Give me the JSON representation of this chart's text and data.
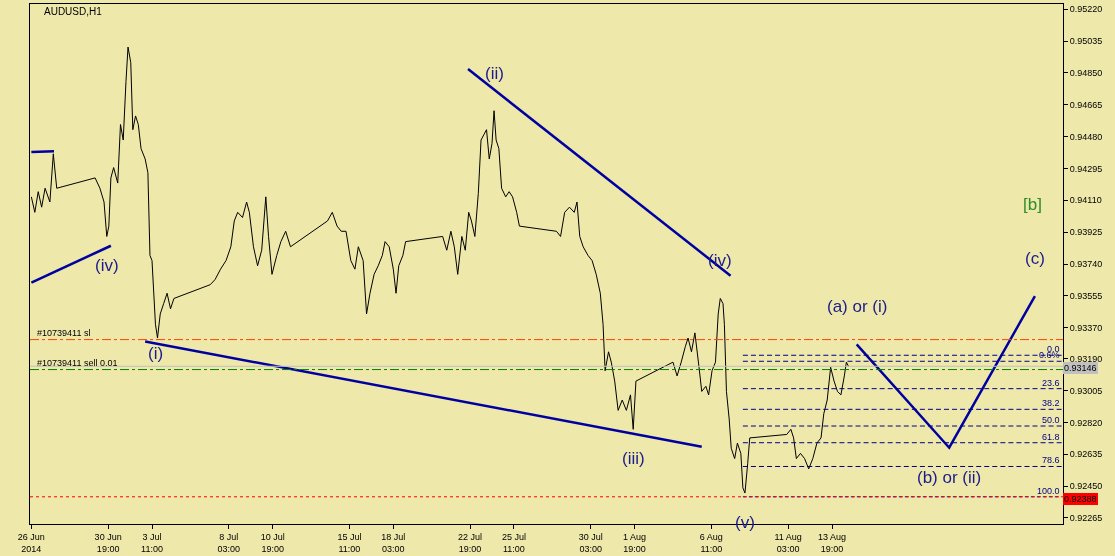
{
  "chart_data": {
    "type": "line",
    "title": "AUDUSD,H1",
    "xlim": [
      "2014-06-26T01:00",
      "2014-08-27T20:00"
    ],
    "ylim": [
      0.9223,
      0.9525
    ],
    "xticks": [
      {
        "value": "2014-06-26T03:00",
        "label": "26 Jun 2014"
      },
      {
        "value": "2014-06-30T19:00",
        "label": "30 Jun 19:00"
      },
      {
        "value": "2014-07-03T11:00",
        "label": "3 Jul 11:00"
      },
      {
        "value": "2014-07-08T03:00",
        "label": "8 Jul 03:00"
      },
      {
        "value": "2014-07-10T19:00",
        "label": "10 Jul 19:00"
      },
      {
        "value": "2014-07-15T11:00",
        "label": "15 Jul 11:00"
      },
      {
        "value": "2014-07-18T03:00",
        "label": "18 Jul 03:00"
      },
      {
        "value": "2014-07-22T19:00",
        "label": "22 Jul 19:00"
      },
      {
        "value": "2014-07-25T11:00",
        "label": "25 Jul 11:00"
      },
      {
        "value": "2014-07-30T03:00",
        "label": "30 Jul 03:00"
      },
      {
        "value": "2014-08-01T19:00",
        "label": "1 Aug 19:00"
      },
      {
        "value": "2014-08-06T11:00",
        "label": "6 Aug 11:00"
      },
      {
        "value": "2014-08-11T03:00",
        "label": "11 Aug 03:00"
      },
      {
        "value": "2014-08-13T19:00",
        "label": "13 Aug 19:00"
      }
    ],
    "yticks": [
      {
        "value": 0.9522,
        "label": "0.95220"
      },
      0.95035,
      {
        "value": 0.9485,
        "label": "0.94850"
      },
      0.94665,
      {
        "value": 0.9448,
        "label": "0.94480"
      },
      0.94295,
      {
        "value": 0.9411,
        "label": "0.94110"
      },
      0.93925,
      {
        "value": 0.9374,
        "label": "0.93740"
      },
      0.93555,
      {
        "value": 0.9337,
        "label": "0.93370"
      },
      {
        "value": 0.9319,
        "label": "0.93190"
      },
      0.93005,
      {
        "value": 0.9282,
        "label": "0.92820"
      },
      0.92635,
      {
        "value": 0.9245,
        "label": "0.92450"
      },
      0.92265
    ],
    "grid": false,
    "legend": false,
    "series": [
      {
        "color": "#000000",
        "line_style": "solid",
        "x": [
          "2014-06-26T03:00",
          "2014-06-26T08:00",
          "2014-06-26T13:00",
          "2014-06-26T18:00",
          "2014-06-26T23:00",
          "2014-06-27T06:00",
          "2014-06-27T11:00",
          "2014-06-27T16:00",
          "2014-06-30T00:00",
          "2014-06-30T07:00",
          "2014-06-30T13:00",
          "2014-06-30T17:00",
          "2014-06-30T20:00",
          "2014-06-30T23:00",
          "2014-07-01T03:00",
          "2014-07-01T09:00",
          "2014-07-01T13:00",
          "2014-07-01T17:00",
          "2014-07-01T21:00",
          "2014-07-02T00:00",
          "2014-07-02T04:00",
          "2014-07-02T07:00",
          "2014-07-02T11:00",
          "2014-07-02T15:00",
          "2014-07-02T19:00",
          "2014-07-03T01:00",
          "2014-07-03T05:00",
          "2014-07-03T08:00",
          "2014-07-03T11:00",
          "2014-07-03T16:00",
          "2014-07-03T19:00",
          "2014-07-03T23:00",
          "2014-07-04T04:00",
          "2014-07-04T09:00",
          "2014-07-04T14:00",
          "2014-07-04T19:00",
          "2014-07-07T00:00",
          "2014-07-07T07:00",
          "2014-07-07T15:00",
          "2014-07-07T23:00",
          "2014-07-08T06:00",
          "2014-07-08T11:00",
          "2014-07-08T16:00",
          "2014-07-08T23:00",
          "2014-07-09T05:00",
          "2014-07-09T09:00",
          "2014-07-09T15:00",
          "2014-07-09T21:00",
          "2014-07-10T03:00",
          "2014-07-10T09:00",
          "2014-07-10T13:00",
          "2014-07-10T18:00",
          "2014-07-11T01:00",
          "2014-07-11T07:00",
          "2014-07-11T14:00",
          "2014-07-11T21:00",
          "2014-07-14T03:00",
          "2014-07-14T10:00",
          "2014-07-14T17:00",
          "2014-07-14T23:00",
          "2014-07-15T06:00",
          "2014-07-15T13:00",
          "2014-07-15T19:00",
          "2014-07-16T00:00",
          "2014-07-16T07:00",
          "2014-07-16T12:00",
          "2014-07-16T17:00",
          "2014-07-16T23:00",
          "2014-07-17T05:00",
          "2014-07-17T11:00",
          "2014-07-17T15:00",
          "2014-07-17T21:00",
          "2014-07-18T03:00",
          "2014-07-18T07:00",
          "2014-07-18T11:00",
          "2014-07-18T17:00",
          "2014-07-18T21:00",
          "2014-07-21T03:00",
          "2014-07-21T09:00",
          "2014-07-21T15:00",
          "2014-07-21T20:00",
          "2014-07-22T01:00",
          "2014-07-22T07:00",
          "2014-07-22T12:00",
          "2014-07-22T17:00",
          "2014-07-22T21:00",
          "2014-07-23T02:00",
          "2014-07-23T07:00",
          "2014-07-23T11:00",
          "2014-07-23T15:00",
          "2014-07-23T19:00",
          "2014-07-23T23:00",
          "2014-07-24T03:00",
          "2014-07-24T06:00",
          "2014-07-24T09:00",
          "2014-07-24T13:00",
          "2014-07-24T17:00",
          "2014-07-24T23:00",
          "2014-07-25T04:00",
          "2014-07-25T09:00",
          "2014-07-25T15:00",
          "2014-07-25T19:00",
          "2014-07-28T01:00",
          "2014-07-28T07:00",
          "2014-07-28T13:00",
          "2014-07-28T20:00",
          "2014-07-29T03:00",
          "2014-07-29T07:00",
          "2014-07-29T11:00",
          "2014-07-29T16:00",
          "2014-07-29T23:00",
          "2014-07-30T05:00",
          "2014-07-30T11:00",
          "2014-07-30T17:00",
          "2014-07-30T21:00",
          "2014-07-31T00:00",
          "2014-07-31T05:00",
          "2014-07-31T09:00",
          "2014-07-31T14:00",
          "2014-07-31T19:00",
          "2014-08-01T01:00",
          "2014-08-01T07:00",
          "2014-08-01T13:00",
          "2014-08-01T17:00",
          "2014-08-01T21:00",
          "2014-08-04T03:00",
          "2014-08-04T09:00",
          "2014-08-04T15:00",
          "2014-08-04T21:00",
          "2014-08-05T01:00",
          "2014-08-05T06:00",
          "2014-08-05T11:00",
          "2014-08-05T17:00",
          "2014-08-05T21:00",
          "2014-08-06T03:00",
          "2014-08-06T07:00",
          "2014-08-06T12:00",
          "2014-08-06T17:00",
          "2014-08-06T21:00",
          "2014-08-07T00:00",
          "2014-08-07T04:00",
          "2014-08-07T06:00",
          "2014-08-07T09:00",
          "2014-08-07T13:00",
          "2014-08-07T16:00",
          "2014-08-07T21:00",
          "2014-08-08T01:00",
          "2014-08-08T06:00",
          "2014-08-08T09:00",
          "2014-08-08T12:00",
          "2014-08-08T16:00",
          "2014-08-08T19:00",
          "2014-08-11T01:00",
          "2014-08-11T07:00",
          "2014-08-11T11:00",
          "2014-08-11T15:00",
          "2014-08-11T21:00",
          "2014-08-12T03:00",
          "2014-08-12T09:00",
          "2014-08-12T15:00",
          "2014-08-12T21:00",
          "2014-08-13T03:00",
          "2014-08-13T07:00",
          "2014-08-13T12:00",
          "2014-08-13T17:00",
          "2014-08-13T22:00",
          "2014-08-14T03:00",
          "2014-08-14T08:00",
          "2014-08-14T13:00",
          "2014-08-14T16:00",
          "2014-08-14T19:00"
        ],
        "values": [
          0.9413,
          0.9404,
          0.9416,
          0.9407,
          0.9418,
          0.941,
          0.9438,
          0.9418,
          0.9424,
          0.9418,
          0.941,
          0.939,
          0.9396,
          0.9424,
          0.943,
          0.9421,
          0.9455,
          0.9446,
          0.948,
          0.95,
          0.9491,
          0.9452,
          0.946,
          0.9455,
          0.9441,
          0.9435,
          0.9427,
          0.9379,
          0.9376,
          0.9339,
          0.9331,
          0.9345,
          0.9351,
          0.9357,
          0.9348,
          0.9354,
          0.9362,
          0.9365,
          0.9371,
          0.9376,
          0.9384,
          0.9399,
          0.9404,
          0.9401,
          0.941,
          0.9404,
          0.9384,
          0.9373,
          0.9382,
          0.9413,
          0.939,
          0.9368,
          0.9379,
          0.9387,
          0.9393,
          0.9384,
          0.9399,
          0.9404,
          0.9396,
          0.9393,
          0.9393,
          0.9376,
          0.9371,
          0.9384,
          0.9376,
          0.9345,
          0.9357,
          0.9368,
          0.9373,
          0.9379,
          0.9387,
          0.9384,
          0.9371,
          0.9357,
          0.9373,
          0.9379,
          0.9387,
          0.939,
          0.9382,
          0.9393,
          0.9384,
          0.9368,
          0.939,
          0.9382,
          0.9404,
          0.9399,
          0.939,
          0.9415,
          0.9446,
          0.9449,
          0.9452,
          0.9435,
          0.9444,
          0.9463,
          0.9446,
          0.9441,
          0.9418,
          0.9413,
          0.9416,
          0.9413,
          0.9404,
          0.9396,
          0.9393,
          0.939,
          0.9404,
          0.9407,
          0.9404,
          0.941,
          0.939,
          0.9384,
          0.9379,
          0.9376,
          0.9368,
          0.9357,
          0.9339,
          0.9312,
          0.9323,
          0.9317,
          0.9306,
          0.9289,
          0.9295,
          0.9289,
          0.9298,
          0.9278,
          0.9306,
          0.9317,
          0.9309,
          0.9317,
          0.9326,
          0.9331,
          0.9323,
          0.9334,
          0.9314,
          0.93,
          0.9303,
          0.9298,
          0.9312,
          0.9317,
          0.9345,
          0.9354,
          0.9351,
          0.9339,
          0.93,
          0.9284,
          0.9267,
          0.9261,
          0.927,
          0.9264,
          0.9244,
          0.9241,
          0.9258,
          0.9273,
          0.9275,
          0.9278,
          0.9273,
          0.9261,
          0.9264,
          0.9261,
          0.9255,
          0.9261,
          0.927,
          0.9273,
          0.9287,
          0.9295,
          0.9314,
          0.9306,
          0.93,
          0.9298,
          0.9309,
          0.9317,
          0.93146
        ]
      },
      {
        "color": "#0000a0",
        "line_style": "solid",
        "x": [
          "2014-06-26T03:00",
          "2014-06-30T23:00"
        ],
        "values": [
          0.93632,
          0.93846
        ]
      },
      {
        "color": "#0000a0",
        "line_style": "solid",
        "x": [
          "2014-06-26T03:00",
          "2014-06-27T12:00"
        ],
        "values": [
          0.9439,
          0.94395
        ]
      },
      {
        "color": "#0000a0",
        "line_style": "solid",
        "x": [
          "2014-07-03T01:00",
          "2014-08-05T21:00"
        ],
        "values": [
          0.9329,
          0.92679
        ]
      },
      {
        "color": "#0000a0",
        "line_style": "solid",
        "x": [
          "2014-07-22T16:00",
          "2014-08-07T15:00"
        ],
        "values": [
          0.94872,
          0.93672
        ]
      },
      {
        "color": "#0000a0",
        "line_style": "solid",
        "x": [
          "2014-08-15T07:00",
          "2014-08-20T22:00",
          "2014-08-26T03:00"
        ],
        "values": [
          0.93273,
          0.92673,
          0.93554
        ]
      },
      {
        "name": "0.0",
        "color": "#00008b",
        "line_style": "dashed",
        "x": [
          "2014-08-08T09:00",
          "2014-08-27T18:00"
        ],
        "values": [
          0.9321,
          0.9321
        ]
      },
      {
        "name": "0.6%",
        "color": "#00008b",
        "line_style": "dashed",
        "x": [
          "2014-08-08T09:00",
          "2014-08-27T18:00"
        ],
        "values": [
          0.93175,
          0.93175
        ]
      },
      {
        "name": "23.6",
        "color": "#00008b",
        "line_style": "dashed",
        "x": [
          "2014-08-08T09:00",
          "2014-08-27T18:00"
        ],
        "values": [
          0.93016,
          0.93016
        ]
      },
      {
        "name": "38.2",
        "color": "#00008b",
        "line_style": "dashed",
        "x": [
          "2014-08-08T09:00",
          "2014-08-27T18:00"
        ],
        "values": [
          0.92896,
          0.92896
        ]
      },
      {
        "name": "50.0",
        "color": "#00008b",
        "line_style": "dashed",
        "x": [
          "2014-08-08T09:00",
          "2014-08-27T18:00"
        ],
        "values": [
          0.92799,
          0.92799
        ]
      },
      {
        "name": "61.8",
        "color": "#00008b",
        "line_style": "dashed",
        "x": [
          "2014-08-08T09:00",
          "2014-08-27T18:00"
        ],
        "values": [
          0.92702,
          0.92702
        ]
      },
      {
        "name": "78.6",
        "color": "#00008b",
        "line_style": "dashed",
        "x": [
          "2014-08-08T09:00",
          "2014-08-27T18:00"
        ],
        "values": [
          0.92564,
          0.92564
        ]
      },
      {
        "name": "100.0",
        "color": "#00008b",
        "line_style": "dotted",
        "x": [
          "2014-08-08T09:00",
          "2014-08-27T18:00"
        ],
        "values": [
          0.92388,
          0.92388
        ]
      }
    ],
    "ref_lines": [
      {
        "axis": "y",
        "value": 0.93301,
        "label": "#10739411 sl",
        "color": "#ff4500",
        "line_style": "dashed"
      },
      {
        "axis": "y",
        "value": 0.93127,
        "label": "#10739411 sell 0.01",
        "color": "#008000",
        "line_style": "dashed"
      },
      {
        "axis": "y",
        "value": 0.93146,
        "label": "0.93146",
        "color": "#c0c0c0",
        "line_style": "solid"
      },
      {
        "axis": "y",
        "value": 0.92388,
        "label": "0.92388",
        "color": "#ff0000",
        "line_style": "dotted"
      }
    ],
    "annotations": [
      {
        "text": "(iv)",
        "x": "2014-06-30T17:00",
        "y": 0.939
      },
      {
        "text": "(i)",
        "x": "2014-07-03T16:00",
        "y": 0.9339
      },
      {
        "text": "(ii)",
        "x": "2014-07-24T06:00",
        "y": 0.9463
      },
      {
        "text": "(iii)",
        "x": "2014-08-01T17:00",
        "y": 0.9278
      },
      {
        "text": "(iv)",
        "x": "2014-08-07T00:00",
        "y": 0.9354
      },
      {
        "text": "(v)",
        "x": "2014-08-08T12:00",
        "y": 0.9241
      },
      {
        "text": "(a) or (i)",
        "x": "2014-08-15T07:00",
        "y": 0.93273
      },
      {
        "text": "(b) or (ii)",
        "x": "2014-08-20T22:00",
        "y": 0.92673
      },
      {
        "text": "(c)",
        "x": "2014-08-26T03:00",
        "y": 0.93554
      },
      "[b]"
    ]
  }
}
